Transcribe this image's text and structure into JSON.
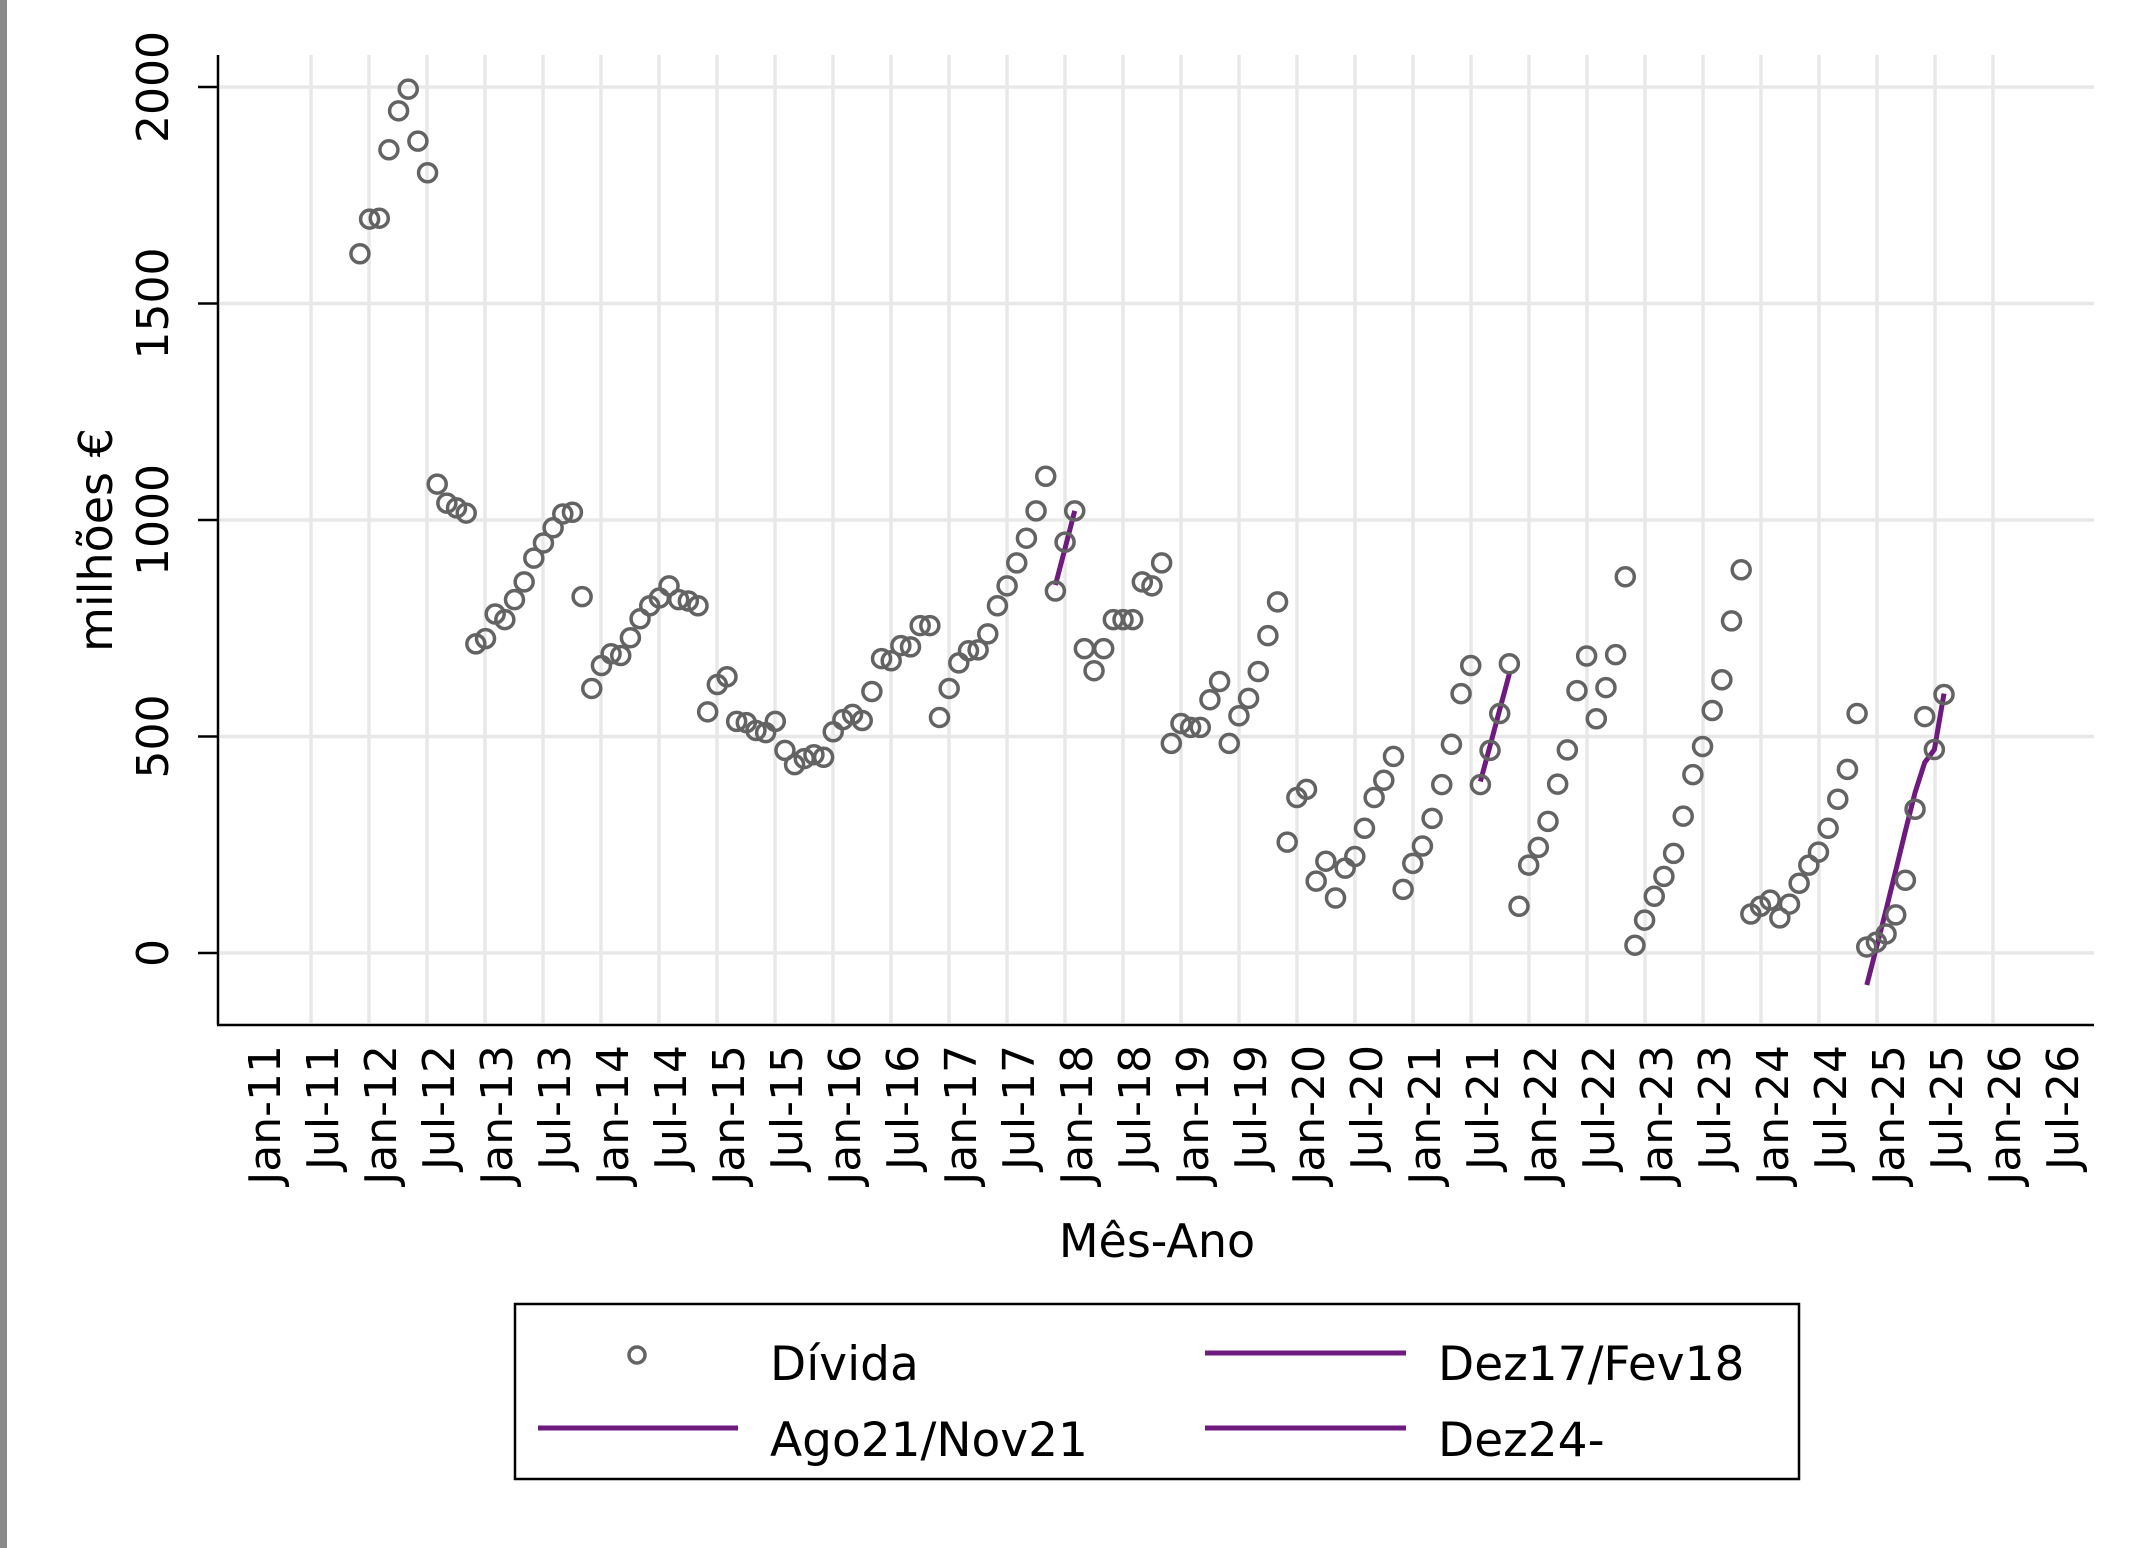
{
  "chart_data": {
    "type": "scatter",
    "title": "",
    "xlabel": "Mês-Ano",
    "ylabel": "milhões €",
    "ylim": [
      -150,
      2080
    ],
    "yticks": [
      0,
      500,
      1000,
      1500,
      2000
    ],
    "xtick_labels": [
      "Jan-11",
      "Jul-11",
      "Jan-12",
      "Jul-12",
      "Jan-13",
      "Jul-13",
      "Jan-14",
      "Jul-14",
      "Jan-15",
      "Jul-15",
      "Jan-16",
      "Jul-16",
      "Jan-17",
      "Jul-17",
      "Jan-18",
      "Jul-18",
      "Jan-19",
      "Jul-19",
      "Jan-20",
      "Jul-20",
      "Jan-21",
      "Jul-21",
      "Jan-22",
      "Jul-22",
      "Jan-23",
      "Jul-23",
      "Jan-24",
      "Jul-24",
      "Jan-25",
      "Jul-25",
      "Jan-26",
      "Jul-26"
    ],
    "grid": true,
    "legend_position": "bottom",
    "colors": {
      "points": "#636363",
      "lines": "#6e1a7e"
    },
    "series": [
      {
        "name": "Dívida",
        "kind": "points",
        "start_month": "Dec-11",
        "values": [
          1615,
          1695,
          1697,
          1855,
          1945,
          1995,
          1875,
          1802,
          1083,
          1039,
          1028,
          1016,
          714,
          726,
          783,
          770,
          816,
          857,
          912,
          947,
          982,
          1014,
          1018,
          823,
          611,
          664,
          691,
          687,
          728,
          772,
          802,
          820,
          848,
          816,
          813,
          802,
          557,
          620,
          638,
          535,
          532,
          514,
          509,
          535,
          468,
          435,
          449,
          458,
          452,
          511,
          539,
          551,
          537,
          604,
          680,
          675,
          710,
          707,
          756,
          756,
          544,
          611,
          670,
          698,
          700,
          737,
          802,
          848,
          901,
          958,
          1021,
          1101,
          836,
          949,
          1021,
          703,
          652,
          703,
          770,
          770,
          770,
          857,
          848,
          901,
          484,
          530,
          521,
          521,
          585,
          627,
          484,
          548,
          588,
          650,
          733,
          811,
          256,
          359,
          378,
          166,
          212,
          127,
          196,
          223,
          288,
          359,
          399,
          454,
          147,
          207,
          247,
          311,
          389,
          482,
          599,
          664,
          389,
          468,
          553,
          668,
          108,
          203,
          244,
          304,
          390,
          469,
          606,
          686,
          541,
          613,
          689,
          869,
          18,
          76,
          131,
          177,
          230,
          316,
          412,
          477,
          560,
          631,
          767,
          885,
          90,
          108,
          122,
          81,
          113,
          161,
          203,
          233,
          288,
          355,
          424,
          553,
          14,
          25,
          44,
          88,
          168,
          332,
          546,
          470,
          597
        ]
      },
      {
        "name": "Dez17/Fev18",
        "kind": "line",
        "months": [
          "Dec-17",
          "Jan-18",
          "Feb-18"
        ],
        "values": [
          850,
          935,
          1021
        ]
      },
      {
        "name": "Ago21/Nov21",
        "kind": "line",
        "months": [
          "Aug-21",
          "Sep-21",
          "Oct-21",
          "Nov-21"
        ],
        "values": [
          396,
          479,
          562,
          645
        ]
      },
      {
        "name": "Dez24-",
        "kind": "line",
        "months": [
          "Dec-24",
          "Jan-25",
          "Feb-25",
          "Mar-25",
          "Apr-25",
          "May-25",
          "Jun-25",
          "Jul-25",
          "Aug-25"
        ],
        "values": [
          -74,
          12,
          100,
          190,
          282,
          370,
          440,
          470,
          599
        ]
      }
    ]
  },
  "legend": {
    "items": [
      {
        "label": "Dívida",
        "kind": "marker"
      },
      {
        "label": "Dez17/Fev18",
        "kind": "line"
      },
      {
        "label": "Ago21/Nov21",
        "kind": "line"
      },
      {
        "label": "Dez24-",
        "kind": "line"
      }
    ]
  }
}
